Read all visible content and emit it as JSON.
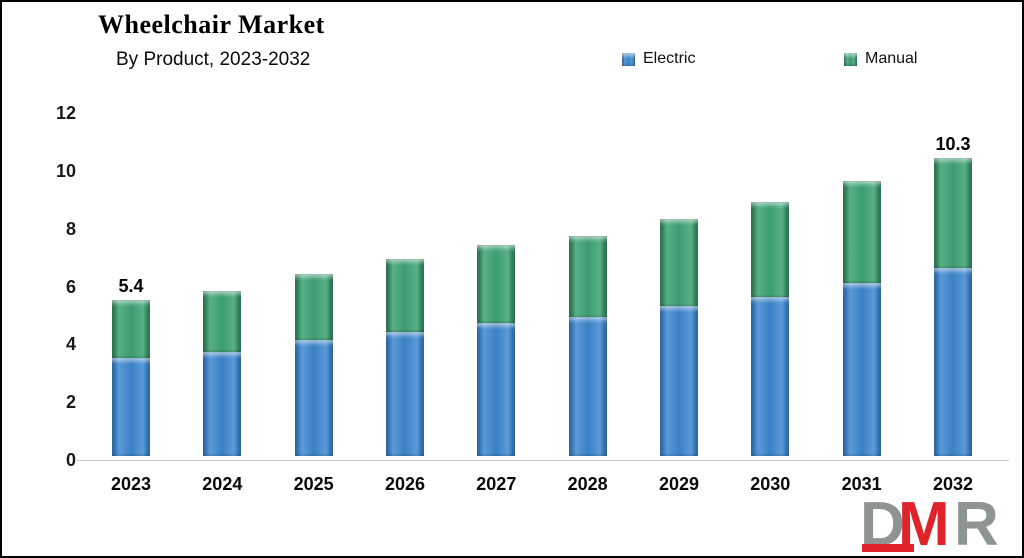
{
  "title": "Wheelchair Market",
  "subtitle": "By Product, 2023-2032",
  "legend": {
    "items": [
      {
        "label": "Electric",
        "color": "#3a80c4"
      },
      {
        "label": "Manual",
        "color": "#3d9b72"
      }
    ]
  },
  "chart_data": {
    "type": "bar",
    "stacked": true,
    "title": "Wheelchair Market",
    "subtitle": "By Product, 2023-2032",
    "categories": [
      "2023",
      "2024",
      "2025",
      "2026",
      "2027",
      "2028",
      "2029",
      "2030",
      "2031",
      "2032"
    ],
    "series": [
      {
        "name": "Electric",
        "color": "#3a80c4",
        "values": [
          3.4,
          3.6,
          4.0,
          4.3,
          4.6,
          4.8,
          5.2,
          5.5,
          6.0,
          6.5
        ]
      },
      {
        "name": "Manual",
        "color": "#3d9b72",
        "values": [
          2.0,
          2.1,
          2.3,
          2.5,
          2.7,
          2.8,
          3.0,
          3.3,
          3.5,
          3.8
        ]
      }
    ],
    "totals": [
      5.4,
      5.7,
      6.3,
      6.8,
      7.3,
      7.6,
      8.2,
      8.8,
      9.5,
      10.3
    ],
    "annotations": [
      {
        "category": "2023",
        "text": "5.4"
      },
      {
        "category": "2032",
        "text": "10.3"
      }
    ],
    "yticks": [
      0,
      2,
      4,
      6,
      8,
      10,
      12
    ],
    "ylim": [
      0,
      12
    ],
    "xlabel": "",
    "ylabel": "",
    "grid": false,
    "legend_position": "top"
  },
  "logo": {
    "text": "DMR",
    "letters": [
      "D",
      "M",
      "R"
    ]
  }
}
